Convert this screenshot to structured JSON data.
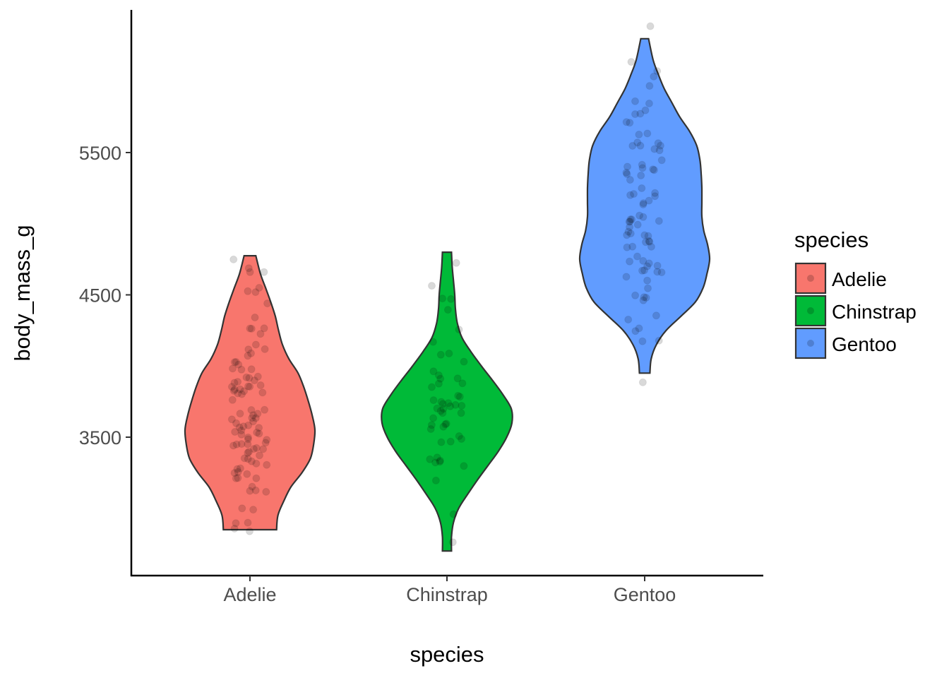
{
  "chart_data": {
    "type": "violin",
    "xlabel": "species",
    "ylabel": "body_mass_g",
    "categories": [
      "Adelie",
      "Chinstrap",
      "Gentoo"
    ],
    "colors": {
      "Adelie": "#F8766D",
      "Chinstrap": "#00BA38",
      "Gentoo": "#619CFF"
    },
    "ylim": [
      2590,
      6000
    ],
    "yticks": [
      3500,
      4500,
      5500
    ],
    "ytick_labels": [
      "3500",
      "4500",
      "5500"
    ],
    "grid": false,
    "legend": {
      "title": "species",
      "position": "right",
      "entries": [
        "Adelie",
        "Chinstrap",
        "Gentoo"
      ]
    },
    "series": [
      {
        "name": "Adelie",
        "min": 2850,
        "max": 4775,
        "density": [
          [
            2850,
            0.41
          ],
          [
            2950,
            0.43
          ],
          [
            3050,
            0.52
          ],
          [
            3150,
            0.63
          ],
          [
            3250,
            0.8
          ],
          [
            3350,
            0.93
          ],
          [
            3450,
            0.98
          ],
          [
            3550,
            1.0
          ],
          [
            3650,
            0.96
          ],
          [
            3750,
            0.9
          ],
          [
            3850,
            0.83
          ],
          [
            3950,
            0.74
          ],
          [
            4050,
            0.6
          ],
          [
            4150,
            0.5
          ],
          [
            4250,
            0.44
          ],
          [
            4350,
            0.39
          ],
          [
            4450,
            0.32
          ],
          [
            4550,
            0.24
          ],
          [
            4650,
            0.16
          ],
          [
            4775,
            0.09
          ]
        ]
      },
      {
        "name": "Chinstrap",
        "min": 2700,
        "max": 4800,
        "density": [
          [
            2700,
            0.07
          ],
          [
            2800,
            0.07
          ],
          [
            2900,
            0.1
          ],
          [
            3000,
            0.18
          ],
          [
            3100,
            0.32
          ],
          [
            3200,
            0.47
          ],
          [
            3300,
            0.63
          ],
          [
            3400,
            0.79
          ],
          [
            3500,
            0.92
          ],
          [
            3600,
            1.0
          ],
          [
            3700,
            0.99
          ],
          [
            3800,
            0.86
          ],
          [
            3900,
            0.7
          ],
          [
            4000,
            0.53
          ],
          [
            4100,
            0.37
          ],
          [
            4200,
            0.23
          ],
          [
            4300,
            0.16
          ],
          [
            4400,
            0.13
          ],
          [
            4500,
            0.12
          ],
          [
            4600,
            0.1
          ],
          [
            4700,
            0.08
          ],
          [
            4800,
            0.07
          ]
        ]
      },
      {
        "name": "Gentoo",
        "min": 3950,
        "max": 6300,
        "density": [
          [
            3950,
            0.08
          ],
          [
            4050,
            0.1
          ],
          [
            4150,
            0.18
          ],
          [
            4250,
            0.33
          ],
          [
            4350,
            0.56
          ],
          [
            4450,
            0.78
          ],
          [
            4550,
            0.9
          ],
          [
            4650,
            0.96
          ],
          [
            4750,
            1.0
          ],
          [
            4850,
            0.97
          ],
          [
            4950,
            0.91
          ],
          [
            5050,
            0.88
          ],
          [
            5150,
            0.88
          ],
          [
            5250,
            0.88
          ],
          [
            5350,
            0.87
          ],
          [
            5450,
            0.85
          ],
          [
            5550,
            0.8
          ],
          [
            5650,
            0.69
          ],
          [
            5750,
            0.54
          ],
          [
            5850,
            0.42
          ],
          [
            5950,
            0.3
          ],
          [
            6050,
            0.21
          ],
          [
            6150,
            0.13
          ],
          [
            6300,
            0.06
          ]
        ]
      }
    ],
    "points": {
      "Adelie": [
        2850,
        2850,
        2900,
        2925,
        2975,
        3050,
        3050,
        3075,
        3150,
        3150,
        3175,
        3200,
        3200,
        3250,
        3250,
        3275,
        3300,
        3300,
        3300,
        3325,
        3325,
        3325,
        3350,
        3350,
        3400,
        3400,
        3400,
        3425,
        3425,
        3450,
        3450,
        3450,
        3450,
        3475,
        3500,
        3500,
        3500,
        3500,
        3525,
        3550,
        3550,
        3550,
        3550,
        3575,
        3600,
        3600,
        3600,
        3625,
        3650,
        3650,
        3650,
        3650,
        3700,
        3700,
        3700,
        3725,
        3725,
        3750,
        3750,
        3750,
        3775,
        3800,
        3800,
        3800,
        3800,
        3800,
        3825,
        3850,
        3900,
        3900,
        3900,
        3900,
        3950,
        3950,
        3950,
        3950,
        3975,
        4000,
        4050,
        4050,
        4075,
        4100,
        4150,
        4150,
        4200,
        4250,
        4300,
        4300,
        4350,
        4400,
        4450,
        4450,
        4500,
        4600,
        4650,
        4700,
        4725,
        4775
      ],
      "Chinstrap": [
        2700,
        2900,
        3200,
        3250,
        3300,
        3325,
        3350,
        3400,
        3400,
        3450,
        3450,
        3450,
        3500,
        3525,
        3550,
        3575,
        3600,
        3600,
        3600,
        3650,
        3650,
        3650,
        3675,
        3700,
        3700,
        3700,
        3725,
        3725,
        3750,
        3750,
        3775,
        3800,
        3800,
        3800,
        3850,
        3850,
        3900,
        3950,
        3950,
        4000,
        4050,
        4050,
        4100,
        4150,
        4300,
        4400,
        4450,
        4500,
        4550,
        4800
      ],
      "Gentoo": [
        3950,
        4100,
        4150,
        4200,
        4300,
        4350,
        4375,
        4400,
        4400,
        4450,
        4500,
        4550,
        4575,
        4600,
        4625,
        4650,
        4650,
        4700,
        4700,
        4725,
        4750,
        4750,
        4750,
        4775,
        4800,
        4800,
        4850,
        4850,
        4850,
        4875,
        4875,
        4900,
        4900,
        4925,
        4950,
        4950,
        4950,
        5000,
        5000,
        5000,
        5050,
        5050,
        5050,
        5100,
        5100,
        5150,
        5150,
        5200,
        5200,
        5200,
        5250,
        5250,
        5300,
        5300,
        5300,
        5350,
        5350,
        5400,
        5400,
        5400,
        5450,
        5450,
        5500,
        5500,
        5550,
        5550,
        5550,
        5600,
        5600,
        5650,
        5650,
        5700,
        5700,
        5750,
        5800,
        5800,
        5850,
        5900,
        5950,
        6000,
        6050,
        6100,
        6300
      ]
    }
  }
}
